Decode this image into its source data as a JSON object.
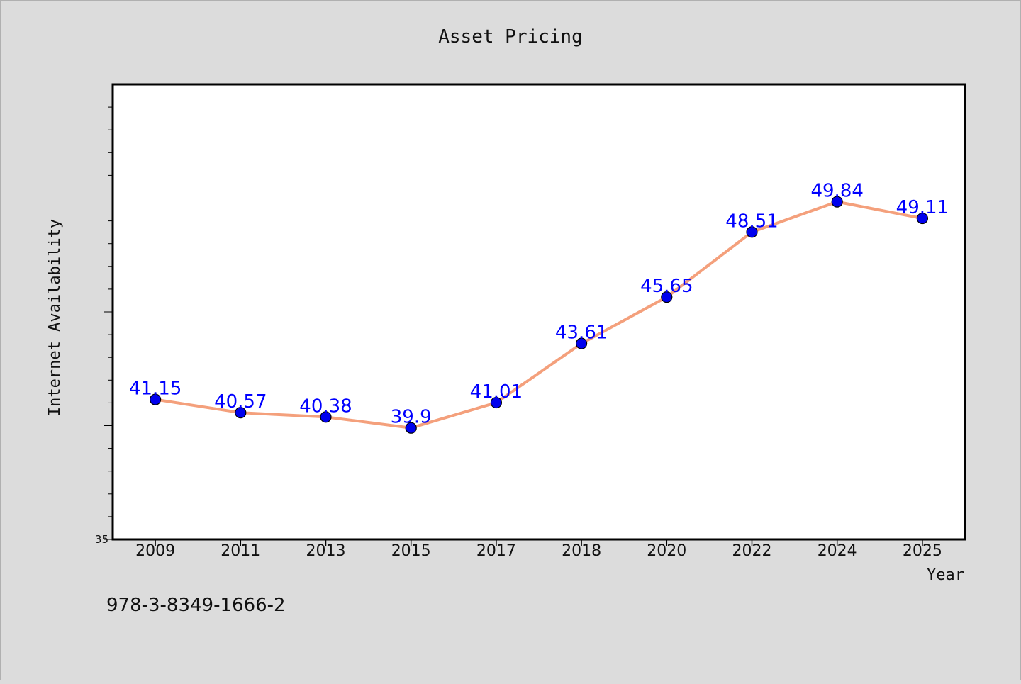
{
  "chart_data": {
    "type": "line",
    "title": "Asset Pricing",
    "xlabel": "Year",
    "ylabel": "Internet Availability",
    "categories": [
      "2009",
      "2011",
      "2013",
      "2015",
      "2017",
      "2018",
      "2020",
      "2022",
      "2024",
      "2025"
    ],
    "series": [
      {
        "values": [
          41.15,
          40.57,
          40.38,
          39.9,
          41.01,
          43.61,
          45.65,
          48.51,
          49.84,
          49.11
        ],
        "data_labels": [
          "41.15",
          "40.57",
          "40.38",
          "39.9",
          "41.01",
          "43.61",
          "45.65",
          "48.51",
          "49.84",
          "49.11"
        ],
        "line_color": "#f4a07c",
        "marker_color": "#0000ee",
        "label_color": "#0000ff"
      }
    ],
    "ylim": [
      35,
      55
    ],
    "y_tick_labels": [
      "35"
    ],
    "grid": false,
    "legend": "none"
  },
  "footer_text": "978-3-8349-1666-2"
}
